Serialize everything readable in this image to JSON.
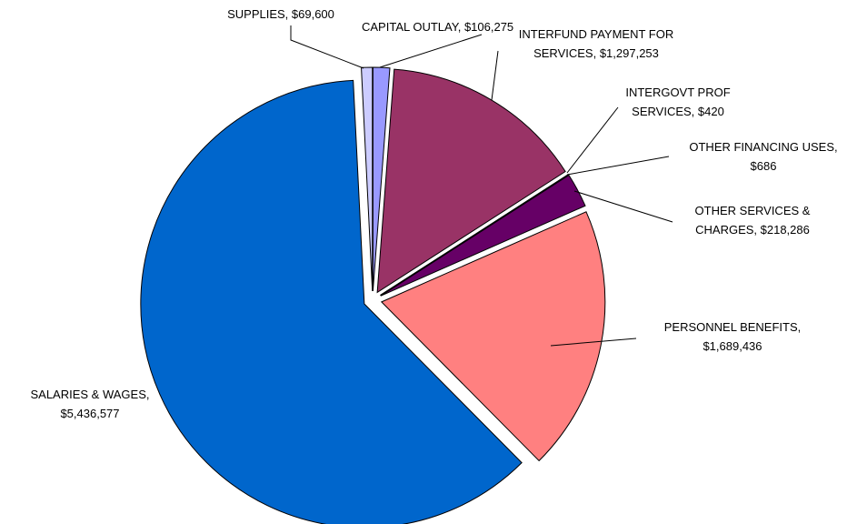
{
  "chart_data": {
    "type": "pie",
    "title": "",
    "slices": [
      {
        "name": "CAPITAL OUTLAY",
        "value": 106275,
        "color": "#9999ff",
        "label_lines": [
          "CAPITAL OUTLAY, $106,275"
        ]
      },
      {
        "name": "INTERFUND PAYMENT FOR SERVICES",
        "value": 1297253,
        "color": "#993366",
        "label_lines": [
          "INTERFUND PAYMENT FOR",
          "SERVICES, $1,297,253"
        ]
      },
      {
        "name": "INTERGOVT PROF SERVICES",
        "value": 420,
        "color": "#ffffcc",
        "label_lines": [
          "INTERGOVT PROF",
          "SERVICES, $420"
        ]
      },
      {
        "name": "OTHER FINANCING USES",
        "value": 686,
        "color": "#ccffff",
        "label_lines": [
          "OTHER FINANCING USES,",
          "$686"
        ]
      },
      {
        "name": "OTHER SERVICES & CHARGES",
        "value": 218286,
        "color": "#660066",
        "label_lines": [
          "OTHER SERVICES &",
          "CHARGES, $218,286"
        ]
      },
      {
        "name": "PERSONNEL BENEFITS",
        "value": 1689436,
        "color": "#ff8080",
        "label_lines": [
          "PERSONNEL BENEFITS,",
          "$1,689,436"
        ]
      },
      {
        "name": "SALARIES & WAGES",
        "value": 5436577,
        "color": "#0066cc",
        "label_lines": [
          "SALARIES & WAGES,",
          "$5,436,577"
        ]
      },
      {
        "name": "SUPPLIES",
        "value": 69600,
        "color": "#ccccff",
        "label_lines": [
          "SUPPLIES, $69,600"
        ]
      }
    ],
    "start": "top",
    "direction": "clockwise",
    "exploded": true,
    "legend": "none"
  }
}
